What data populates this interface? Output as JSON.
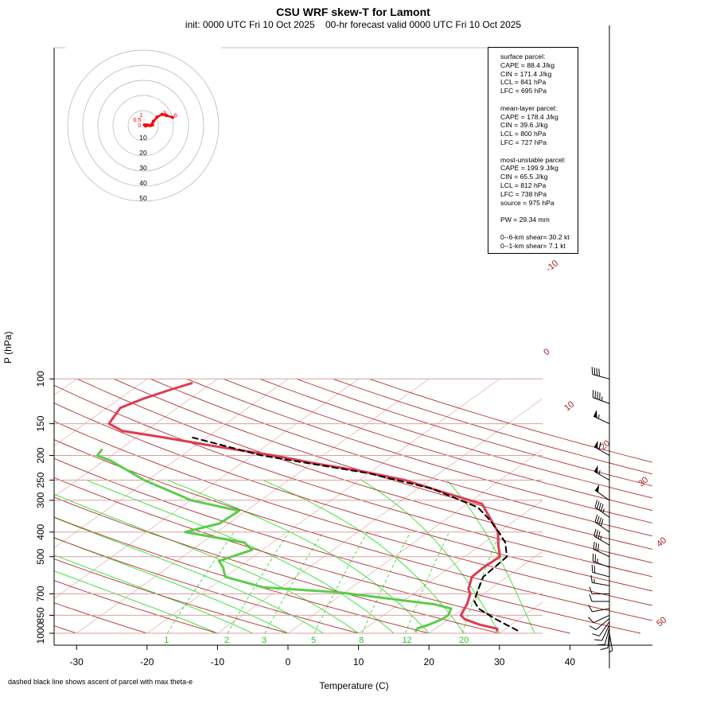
{
  "title": "CSU WRF skew-T for Lamont",
  "subtitle": "init: 0000 UTC Fri 10 Oct 2025    00-hr forecast valid 0000 UTC Fri 10 Oct 2025",
  "footnote": "dashed black line shows ascent of parcel with max theta-e",
  "colors": {
    "temperature": "#dc3c50",
    "dewpoint": "#5ccc4a",
    "isotherm": "#a02020",
    "dry_adiabat": "#ad2f2f",
    "moist_adiabat": "#30e030",
    "mixing_ratio": "#30d030",
    "parcel": "#000000",
    "hodograph": "#ff0000"
  },
  "info": {
    "surface": {
      "header": "surface parcel:",
      "cape": "CAPE = 88.4 J/kg",
      "cin": "CIN = 171.4 J/kg",
      "lcl": "LCL = 841 hPa",
      "lfc": "LFC = 695 hPa"
    },
    "mean_layer": {
      "header": "mean-layer parcel:",
      "cape": "CAPE = 178.4 J/kg",
      "cin": "CIN = 39.6 J/kg",
      "lcl": "LCL = 800 hPa",
      "lfc": "LFC = 727 hPa"
    },
    "most_unstable": {
      "header": "most-unstable parcel:",
      "cape": "CAPE = 199.9 J/kg",
      "cin": "CIN = 65.5 J/kg",
      "lcl": "LCL = 812 hPa",
      "lfc": "LFC = 738 hPa",
      "source": "source = 975 hPa"
    },
    "pw": "PW =  29.34 mm",
    "shear6": "0--6-km shear= 30.2 kt",
    "shear1": "0--1-km shear= 7.1 kt"
  },
  "chart_data": {
    "type": "line",
    "title": "CSU WRF skew-T for Lamont",
    "xlabel": "Temperature (C)",
    "ylabel": "P (hPa)",
    "x_ticks": [
      -30,
      -20,
      -10,
      0,
      10,
      20,
      30,
      40
    ],
    "y_ticks": [
      100,
      150,
      200,
      250,
      300,
      400,
      500,
      700,
      850,
      1000
    ],
    "isotherm_labels": [
      -10,
      0,
      10,
      20,
      30,
      40,
      50
    ],
    "mixing_ratio_labels": [
      "1",
      "2",
      "3",
      "5",
      "8",
      "12",
      "20"
    ],
    "series": [
      {
        "name": "temperature",
        "points": [
          [
            29.1,
            975
          ],
          [
            28.8,
            960
          ],
          [
            25.5,
            925
          ],
          [
            22.3,
            880
          ],
          [
            21.0,
            850
          ],
          [
            20.2,
            800
          ],
          [
            19.5,
            760
          ],
          [
            18.1,
            700
          ],
          [
            16.9,
            670
          ],
          [
            15.0,
            600
          ],
          [
            14.8,
            550
          ],
          [
            15.0,
            500
          ],
          [
            12.5,
            450
          ],
          [
            9.9,
            400
          ],
          [
            5.8,
            350
          ],
          [
            2.1,
            310
          ],
          [
            -5.4,
            280
          ],
          [
            -13.5,
            250
          ],
          [
            -21.7,
            230
          ],
          [
            -29.5,
            215
          ],
          [
            -37.0,
            200
          ],
          [
            -46.5,
            185
          ],
          [
            -56.0,
            170
          ],
          [
            -63.3,
            160
          ],
          [
            -66.6,
            150
          ],
          [
            -68.1,
            130
          ],
          [
            -66.7,
            120
          ],
          [
            -64.5,
            110
          ],
          [
            -62.8,
            104
          ]
        ]
      },
      {
        "name": "dewpoint",
        "points": [
          [
            17.7,
            980
          ],
          [
            17.4,
            960
          ],
          [
            18.3,
            925
          ],
          [
            19.1,
            880
          ],
          [
            19.2,
            850
          ],
          [
            18.3,
            800
          ],
          [
            15.2,
            770
          ],
          [
            -0.9,
            690
          ],
          [
            -12.5,
            660
          ],
          [
            -20.0,
            600
          ],
          [
            -22.2,
            550
          ],
          [
            -24.0,
            520
          ],
          [
            -21.5,
            470
          ],
          [
            -24.0,
            440
          ],
          [
            -34.5,
            400
          ],
          [
            -31.3,
            370
          ],
          [
            -31.0,
            330
          ],
          [
            -39.9,
            300
          ],
          [
            -50.5,
            250
          ],
          [
            -59.0,
            210
          ],
          [
            -62.0,
            200
          ],
          [
            -62.5,
            190
          ]
        ]
      },
      {
        "name": "parcel",
        "points": [
          [
            32.0,
            975
          ],
          [
            26.7,
            880
          ],
          [
            22.2,
            800
          ],
          [
            20.2,
            750
          ],
          [
            19.0,
            700
          ],
          [
            16.6,
            600
          ],
          [
            16.0,
            500
          ],
          [
            13.0,
            440
          ],
          [
            10.0,
            400
          ],
          [
            6.5,
            360
          ],
          [
            2.2,
            320
          ],
          [
            -8.0,
            270
          ],
          [
            -20.0,
            235
          ],
          [
            -38.7,
            200
          ],
          [
            -52.0,
            170
          ]
        ]
      }
    ],
    "hodograph": {
      "ring_labels": [
        "10",
        "20",
        "30",
        "40",
        "50"
      ],
      "point_labels": [
        "0",
        "0.5",
        "1",
        "3",
        "6"
      ],
      "points": [
        [
          0.8,
          11.5
        ],
        [
          1.6,
          12.2
        ],
        [
          2.5,
          11.5
        ],
        [
          3.6,
          11.8
        ],
        [
          5.0,
          11.9
        ],
        [
          6.2,
          11.5
        ],
        [
          6.0,
          10.7
        ],
        [
          6.8,
          9.0
        ],
        [
          9.2,
          6.3
        ],
        [
          12.5,
          4.5
        ],
        [
          14.5,
          4.8
        ],
        [
          15.5,
          5.3
        ],
        [
          19.4,
          6.5
        ]
      ]
    },
    "wind_barbs": [
      {
        "p": 1000,
        "speed_kt": 5,
        "dir_deg": 170
      },
      {
        "p": 975,
        "speed_kt": 10,
        "dir_deg": 185
      },
      {
        "p": 950,
        "speed_kt": 10,
        "dir_deg": 195
      },
      {
        "p": 925,
        "speed_kt": 10,
        "dir_deg": 205
      },
      {
        "p": 900,
        "speed_kt": 10,
        "dir_deg": 215
      },
      {
        "p": 875,
        "speed_kt": 10,
        "dir_deg": 230
      },
      {
        "p": 850,
        "speed_kt": 10,
        "dir_deg": 245
      },
      {
        "p": 800,
        "speed_kt": 10,
        "dir_deg": 260
      },
      {
        "p": 750,
        "speed_kt": 10,
        "dir_deg": 270
      },
      {
        "p": 700,
        "speed_kt": 10,
        "dir_deg": 270
      },
      {
        "p": 650,
        "speed_kt": 15,
        "dir_deg": 280
      },
      {
        "p": 600,
        "speed_kt": 20,
        "dir_deg": 285
      },
      {
        "p": 550,
        "speed_kt": 25,
        "dir_deg": 290
      },
      {
        "p": 500,
        "speed_kt": 30,
        "dir_deg": 295
      },
      {
        "p": 450,
        "speed_kt": 35,
        "dir_deg": 300
      },
      {
        "p": 400,
        "speed_kt": 40,
        "dir_deg": 305
      },
      {
        "p": 350,
        "speed_kt": 45,
        "dir_deg": 305
      },
      {
        "p": 300,
        "speed_kt": 50,
        "dir_deg": 305
      },
      {
        "p": 250,
        "speed_kt": 55,
        "dir_deg": 300
      },
      {
        "p": 200,
        "speed_kt": 60,
        "dir_deg": 300
      },
      {
        "p": 150,
        "speed_kt": 55,
        "dir_deg": 295
      },
      {
        "p": 125,
        "speed_kt": 45,
        "dir_deg": 290
      },
      {
        "p": 100,
        "speed_kt": 40,
        "dir_deg": 285
      }
    ]
  }
}
